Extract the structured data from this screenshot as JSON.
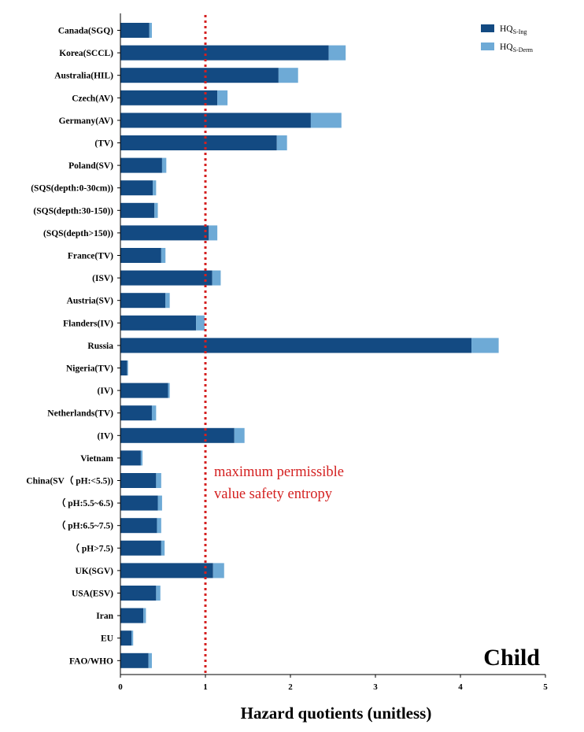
{
  "chart_data": {
    "type": "bar",
    "orientation": "horizontal",
    "stacked": true,
    "title": "",
    "panel_label": "Child",
    "xlabel": "Hazard quotients (unitless)",
    "ylabel": "",
    "xlim": [
      0,
      5
    ],
    "xticks": [
      "0",
      "1",
      "2",
      "3",
      "4",
      "5"
    ],
    "categories": [
      "Canada(SGQ)",
      "Korea(SCCL)",
      "Australia(HIL)",
      "Czech(AV)",
      "Germany(AV)",
      "(TV)",
      "Poland(SV)",
      "(SQS(depth:0-30cm))",
      "(SQS(depth:30-150))",
      "(SQS(depth>150))",
      "France(TV)",
      "(ISV)",
      "Austria(SV)",
      "Flanders(IV)",
      "Russia",
      "Nigeria(TV)",
      "(IV)",
      "Netherlands(TV)",
      "(IV)",
      "Vietnam",
      "China(SV（ pH:<5.5))",
      "（ pH:5.5~6.5)",
      "（ pH:6.5~7.5)",
      "（ pH>7.5)",
      "UK(SGV)",
      "USA(ESV)",
      "Iran",
      "EU",
      "FAO/WHO"
    ],
    "series": [
      {
        "name": "HQS-Ing",
        "legend_main": "HQ",
        "legend_sub": "S-Ing",
        "color": "#134a82",
        "values": [
          0.34,
          2.45,
          1.86,
          1.14,
          2.24,
          1.84,
          0.49,
          0.38,
          0.4,
          1.04,
          0.48,
          1.08,
          0.53,
          0.89,
          4.13,
          0.08,
          0.56,
          0.37,
          1.34,
          0.24,
          0.42,
          0.44,
          0.43,
          0.48,
          1.09,
          0.42,
          0.27,
          0.13,
          0.33
        ]
      },
      {
        "name": "HQS-Derm",
        "legend_main": "HQ",
        "legend_sub": "S-Derm",
        "color": "#6eaad6",
        "values": [
          0.03,
          0.2,
          0.23,
          0.12,
          0.36,
          0.12,
          0.05,
          0.04,
          0.04,
          0.1,
          0.05,
          0.1,
          0.05,
          0.1,
          0.32,
          0.01,
          0.02,
          0.05,
          0.12,
          0.02,
          0.06,
          0.05,
          0.05,
          0.04,
          0.13,
          0.05,
          0.03,
          0.02,
          0.04
        ]
      }
    ],
    "reference_line": {
      "x": 1,
      "color": "#d42020",
      "label_line1": "maximum permissible",
      "label_line2": "value safety entropy"
    }
  }
}
